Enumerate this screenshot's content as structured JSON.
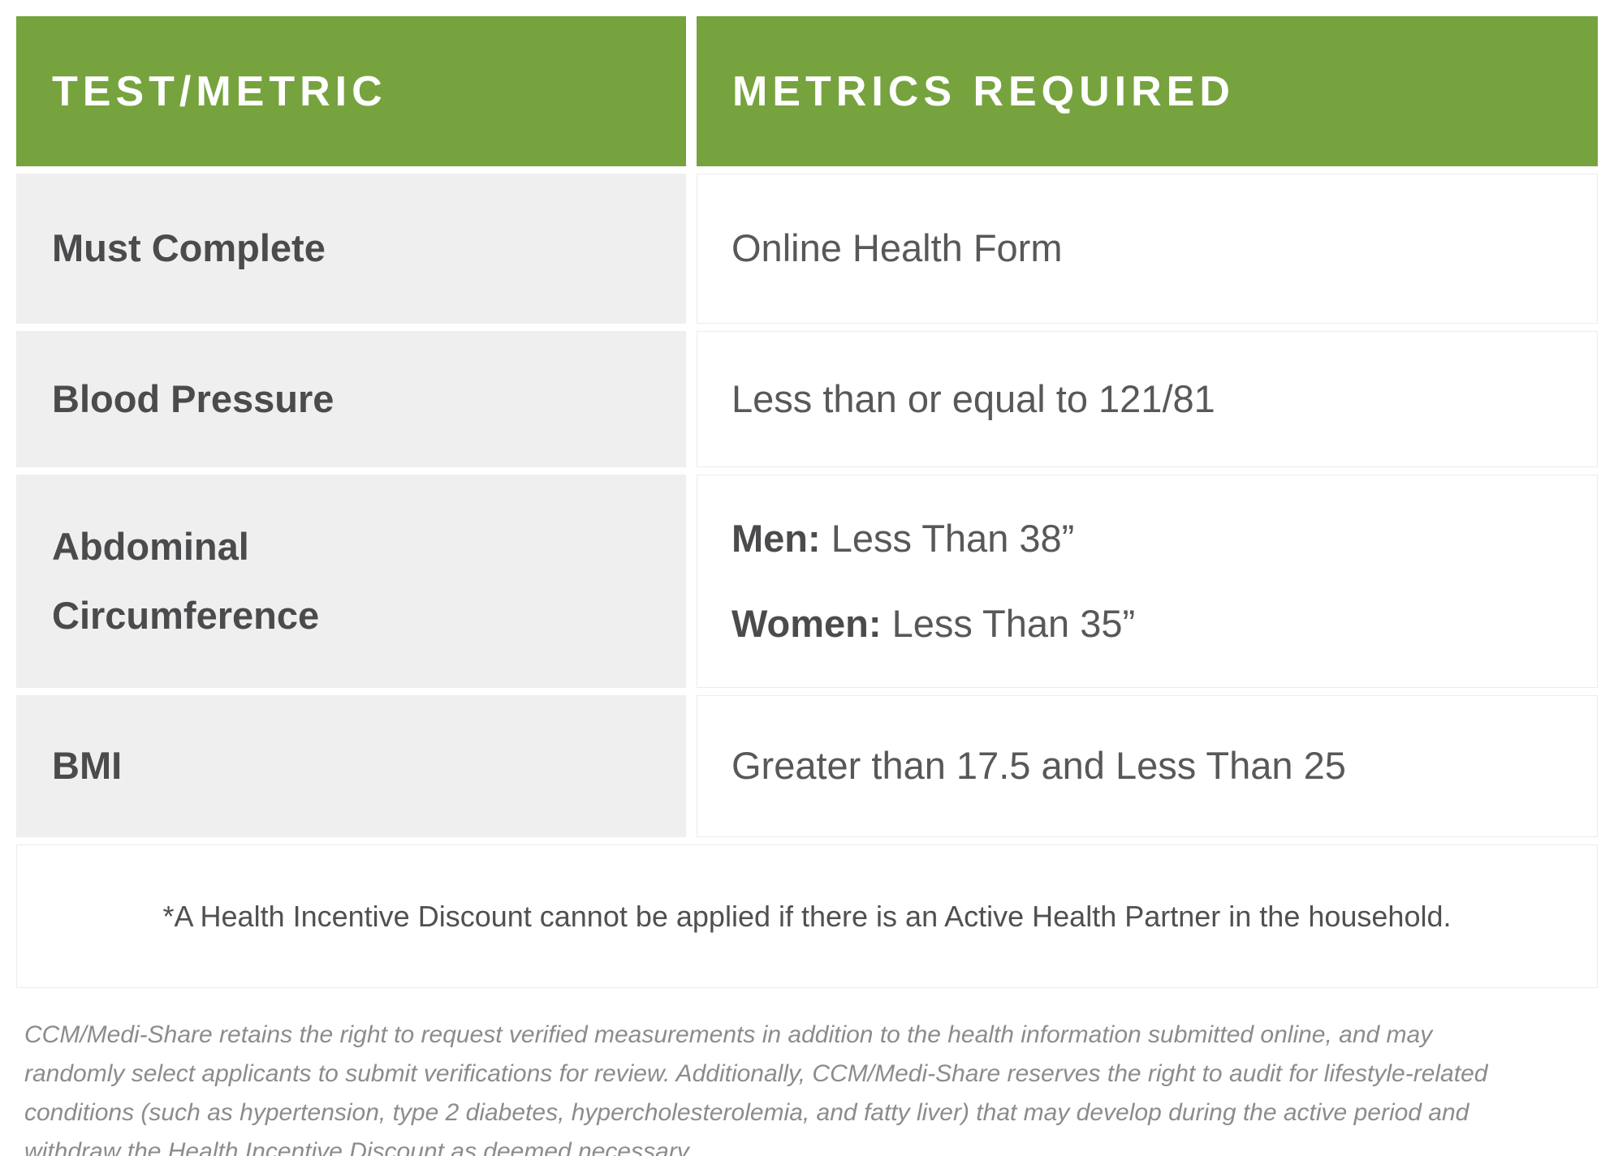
{
  "colors": {
    "header_green": "#76a33e",
    "row_gray": "#efefef",
    "label_text": "#4a4b4d",
    "value_text": "#57585a",
    "disclaimer_text": "#8c8c8c",
    "cell_border": "#ececec",
    "header_text": "#ffffff"
  },
  "table": {
    "columns": [
      {
        "label": "TEST/METRIC"
      },
      {
        "label": "METRICS REQUIRED"
      }
    ],
    "rows": [
      {
        "metric": "Must Complete",
        "lines": [
          {
            "prefix": "",
            "text": "Online Health Form"
          }
        ]
      },
      {
        "metric": "Blood Pressure",
        "lines": [
          {
            "prefix": "",
            "text": "Less than or equal to 121/81"
          }
        ]
      },
      {
        "metric": "Abdominal Circumference",
        "lines": [
          {
            "prefix": "Men:",
            "text": " Less Than 38”"
          },
          {
            "prefix": "Women:",
            "text": " Less Than 35”"
          }
        ]
      },
      {
        "metric": "BMI",
        "lines": [
          {
            "prefix": "",
            "text": "Greater than 17.5 and Less Than 25"
          }
        ]
      }
    ],
    "footnote": "*A Health Incentive Discount cannot be applied if there is an Active Health Partner in the household."
  },
  "disclaimer": "CCM/Medi-Share retains the right to request verified measurements in addition to the health information submitted online, and may randomly select applicants to submit verifications for review. Additionally, CCM/Medi-Share reserves the right to audit for lifestyle-related conditions (such as hypertension, type 2 diabetes, hypercholesterolemia, and fatty liver) that may develop during the active period and withdraw the Health Incentive Discount as deemed necessary."
}
